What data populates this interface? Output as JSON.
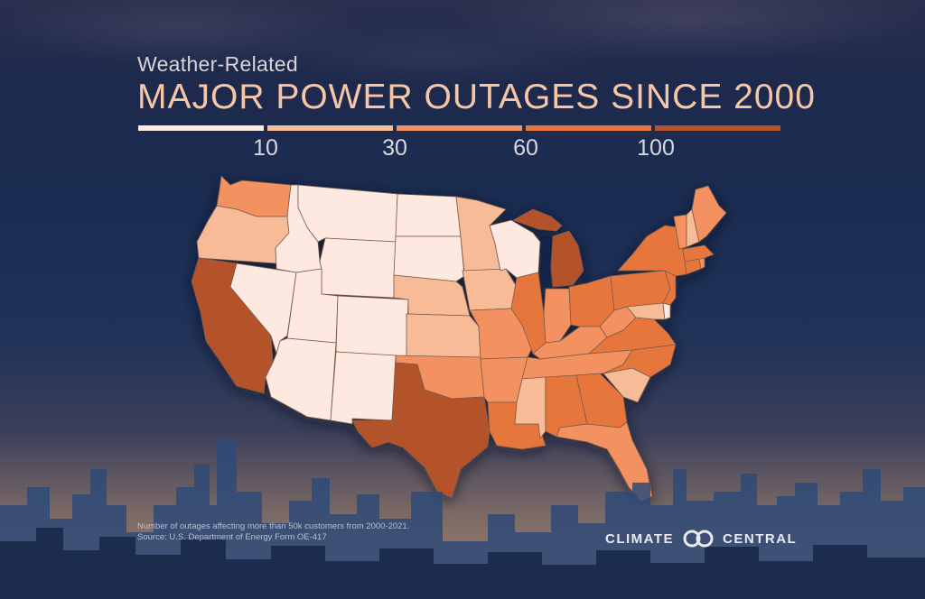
{
  "subtitle": "Weather-Related",
  "title": "MAJOR POWER OUTAGES SINCE 2000",
  "legend": {
    "ticks": [
      "10",
      "30",
      "60",
      "100"
    ],
    "colors": [
      "#fde9df",
      "#f7bb97",
      "#f39260",
      "#e7763e",
      "#b4532c"
    ]
  },
  "notes": {
    "line1": "Number of outages affecting more than 50k customers from 2000-2021.",
    "line2": "Source: U.S. Department of Energy Form OE-417"
  },
  "logo": {
    "left": "CLIMATE",
    "right": "CENTRAL"
  }
}
